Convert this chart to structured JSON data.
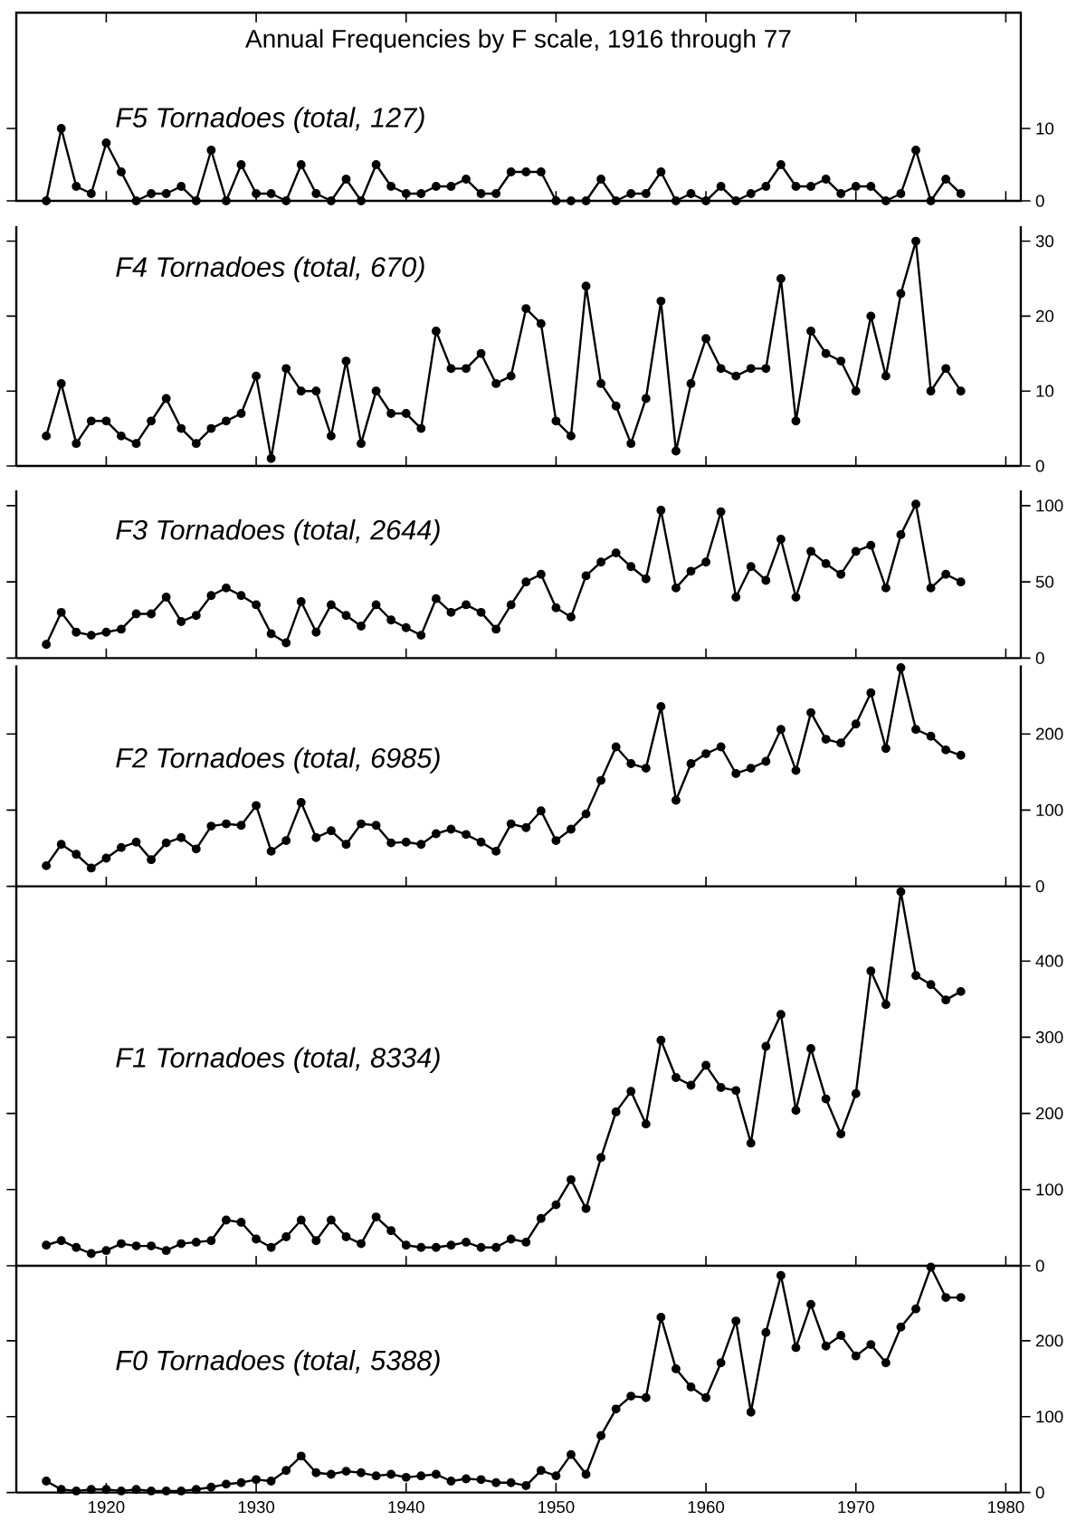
{
  "chart_data": [
    {
      "type": "line",
      "title": "Annual Frequencies by F scale, 1916 through 77",
      "subtitle": "F5 Tornadoes (total, 127)",
      "color": "#000000",
      "marker": "circle",
      "line_style": "solid",
      "tick_labels": "y",
      "xlim": [
        1914,
        1981
      ],
      "xticks": [
        1920,
        1930,
        1940,
        1950,
        1960,
        1970,
        1980
      ],
      "ylim": [
        0,
        26
      ],
      "yticks": [
        0,
        10
      ],
      "x": [
        1916,
        1917,
        1918,
        1919,
        1920,
        1921,
        1922,
        1923,
        1924,
        1925,
        1926,
        1927,
        1928,
        1929,
        1930,
        1931,
        1932,
        1933,
        1934,
        1935,
        1936,
        1937,
        1938,
        1939,
        1940,
        1941,
        1942,
        1943,
        1944,
        1945,
        1946,
        1947,
        1948,
        1949,
        1950,
        1951,
        1952,
        1953,
        1954,
        1955,
        1956,
        1957,
        1958,
        1959,
        1960,
        1961,
        1962,
        1963,
        1964,
        1965,
        1966,
        1967,
        1968,
        1969,
        1970,
        1971,
        1972,
        1973,
        1974,
        1975,
        1976,
        1977
      ],
      "values": [
        0,
        10,
        2,
        1,
        8,
        4,
        0,
        1,
        1,
        2,
        0,
        7,
        0,
        5,
        1,
        1,
        0,
        5,
        1,
        0,
        3,
        0,
        5,
        2,
        1,
        1,
        2,
        2,
        3,
        1,
        1,
        4,
        4,
        4,
        0,
        0,
        0,
        3,
        0,
        1,
        1,
        4,
        0,
        1,
        0,
        2,
        0,
        1,
        2,
        5,
        2,
        2,
        3,
        1,
        2,
        2,
        0,
        1,
        7,
        0,
        3,
        1
      ]
    },
    {
      "type": "line",
      "subtitle": "F4 Tornadoes (total, 670)",
      "color": "#000000",
      "marker": "circle",
      "line_style": "solid",
      "tick_labels": "y",
      "xlim": [
        1914,
        1981
      ],
      "xticks": [
        1920,
        1930,
        1940,
        1950,
        1960,
        1970,
        1980
      ],
      "ylim": [
        0,
        32
      ],
      "yticks": [
        0,
        10,
        20,
        30
      ],
      "x": [
        1916,
        1917,
        1918,
        1919,
        1920,
        1921,
        1922,
        1923,
        1924,
        1925,
        1926,
        1927,
        1928,
        1929,
        1930,
        1931,
        1932,
        1933,
        1934,
        1935,
        1936,
        1937,
        1938,
        1939,
        1940,
        1941,
        1942,
        1943,
        1944,
        1945,
        1946,
        1947,
        1948,
        1949,
        1950,
        1951,
        1952,
        1953,
        1954,
        1955,
        1956,
        1957,
        1958,
        1959,
        1960,
        1961,
        1962,
        1963,
        1964,
        1965,
        1966,
        1967,
        1968,
        1969,
        1970,
        1971,
        1972,
        1973,
        1974,
        1975,
        1976,
        1977
      ],
      "values": [
        4,
        11,
        3,
        6,
        6,
        4,
        3,
        6,
        9,
        5,
        3,
        5,
        6,
        7,
        12,
        1,
        13,
        10,
        10,
        4,
        14,
        3,
        10,
        7,
        7,
        5,
        18,
        13,
        13,
        15,
        11,
        12,
        21,
        19,
        6,
        4,
        24,
        11,
        8,
        3,
        9,
        22,
        2,
        11,
        17,
        13,
        12,
        13,
        13,
        25,
        6,
        18,
        15,
        14,
        10,
        20,
        12,
        23,
        30,
        10,
        13,
        10
      ]
    },
    {
      "type": "line",
      "subtitle": "F3 Tornadoes (total, 2644)",
      "color": "#000000",
      "marker": "circle",
      "line_style": "solid",
      "tick_labels": "y",
      "xlim": [
        1914,
        1981
      ],
      "xticks": [
        1920,
        1930,
        1940,
        1950,
        1960,
        1970,
        1980
      ],
      "ylim": [
        0,
        110
      ],
      "yticks": [
        0,
        50,
        100
      ],
      "x": [
        1916,
        1917,
        1918,
        1919,
        1920,
        1921,
        1922,
        1923,
        1924,
        1925,
        1926,
        1927,
        1928,
        1929,
        1930,
        1931,
        1932,
        1933,
        1934,
        1935,
        1936,
        1937,
        1938,
        1939,
        1940,
        1941,
        1942,
        1943,
        1944,
        1945,
        1946,
        1947,
        1948,
        1949,
        1950,
        1951,
        1952,
        1953,
        1954,
        1955,
        1956,
        1957,
        1958,
        1959,
        1960,
        1961,
        1962,
        1963,
        1964,
        1965,
        1966,
        1967,
        1968,
        1969,
        1970,
        1971,
        1972,
        1973,
        1974,
        1975,
        1976,
        1977
      ],
      "values": [
        9,
        30,
        17,
        15,
        17,
        19,
        29,
        29,
        40,
        24,
        28,
        41,
        46,
        41,
        35,
        16,
        10,
        37,
        17,
        35,
        28,
        21,
        35,
        25,
        20,
        15,
        39,
        30,
        35,
        30,
        19,
        35,
        50,
        55,
        33,
        27,
        54,
        63,
        69,
        60,
        52,
        97,
        46,
        57,
        63,
        96,
        40,
        60,
        51,
        78,
        40,
        70,
        62,
        55,
        70,
        74,
        46,
        81,
        101,
        46,
        55,
        50
      ]
    },
    {
      "type": "line",
      "subtitle": "F2 Tornadoes (total, 6985)",
      "color": "#000000",
      "marker": "circle",
      "line_style": "solid",
      "tick_labels": "y",
      "xlim": [
        1914,
        1981
      ],
      "xticks": [
        1920,
        1930,
        1940,
        1950,
        1960,
        1970,
        1980
      ],
      "ylim": [
        0,
        290
      ],
      "yticks": [
        0,
        100,
        200
      ],
      "x": [
        1916,
        1917,
        1918,
        1919,
        1920,
        1921,
        1922,
        1923,
        1924,
        1925,
        1926,
        1927,
        1928,
        1929,
        1930,
        1931,
        1932,
        1933,
        1934,
        1935,
        1936,
        1937,
        1938,
        1939,
        1940,
        1941,
        1942,
        1943,
        1944,
        1945,
        1946,
        1947,
        1948,
        1949,
        1950,
        1951,
        1952,
        1953,
        1954,
        1955,
        1956,
        1957,
        1958,
        1959,
        1960,
        1961,
        1962,
        1963,
        1964,
        1965,
        1966,
        1967,
        1968,
        1969,
        1970,
        1971,
        1972,
        1973,
        1974,
        1975,
        1976,
        1977
      ],
      "values": [
        27,
        55,
        42,
        24,
        37,
        51,
        58,
        35,
        57,
        64,
        49,
        79,
        82,
        80,
        106,
        46,
        60,
        110,
        64,
        73,
        55,
        82,
        80,
        57,
        58,
        55,
        69,
        75,
        68,
        58,
        46,
        82,
        77,
        99,
        60,
        75,
        95,
        139,
        183,
        161,
        155,
        236,
        113,
        161,
        174,
        183,
        148,
        155,
        164,
        206,
        152,
        228,
        193,
        188,
        213,
        254,
        181,
        287,
        206,
        197,
        179,
        172
      ]
    },
    {
      "type": "line",
      "subtitle": "F1 Tornadoes (total, 8334)",
      "color": "#000000",
      "marker": "circle",
      "line_style": "solid",
      "tick_labels": "y",
      "xlim": [
        1914,
        1981
      ],
      "xticks": [
        1920,
        1930,
        1940,
        1950,
        1960,
        1970,
        1980
      ],
      "ylim": [
        0,
        500
      ],
      "yticks": [
        0,
        100,
        200,
        300,
        400
      ],
      "x": [
        1916,
        1917,
        1918,
        1919,
        1920,
        1921,
        1922,
        1923,
        1924,
        1925,
        1926,
        1927,
        1928,
        1929,
        1930,
        1931,
        1932,
        1933,
        1934,
        1935,
        1936,
        1937,
        1938,
        1939,
        1940,
        1941,
        1942,
        1943,
        1944,
        1945,
        1946,
        1947,
        1948,
        1949,
        1950,
        1951,
        1952,
        1953,
        1954,
        1955,
        1956,
        1957,
        1958,
        1959,
        1960,
        1961,
        1962,
        1963,
        1964,
        1965,
        1966,
        1967,
        1968,
        1969,
        1970,
        1971,
        1972,
        1973,
        1974,
        1975,
        1976,
        1977
      ],
      "values": [
        27,
        33,
        24,
        16,
        20,
        29,
        26,
        26,
        20,
        29,
        31,
        33,
        60,
        57,
        35,
        24,
        38,
        60,
        33,
        60,
        38,
        29,
        64,
        46,
        27,
        24,
        24,
        27,
        31,
        24,
        24,
        35,
        31,
        62,
        80,
        113,
        75,
        142,
        202,
        229,
        186,
        296,
        247,
        237,
        263,
        234,
        230,
        161,
        288,
        330,
        204,
        285,
        219,
        173,
        226,
        387,
        343,
        491,
        381,
        369,
        349,
        360
      ]
    },
    {
      "type": "line",
      "subtitle": "F0 Tornadoes (total, 5388)",
      "color": "#000000",
      "marker": "circle",
      "line_style": "solid",
      "xlim": [
        1914,
        1981
      ],
      "xticks": [
        1920,
        1930,
        1940,
        1950,
        1960,
        1970,
        1980
      ],
      "ylim": [
        0,
        300
      ],
      "yticks": [
        0,
        100,
        200
      ],
      "x": [
        1916,
        1917,
        1918,
        1919,
        1920,
        1921,
        1922,
        1923,
        1924,
        1925,
        1926,
        1927,
        1928,
        1929,
        1930,
        1931,
        1932,
        1933,
        1934,
        1935,
        1936,
        1937,
        1938,
        1939,
        1940,
        1941,
        1942,
        1943,
        1944,
        1945,
        1946,
        1947,
        1948,
        1949,
        1950,
        1951,
        1952,
        1953,
        1954,
        1955,
        1956,
        1957,
        1958,
        1959,
        1960,
        1961,
        1962,
        1963,
        1964,
        1965,
        1966,
        1967,
        1968,
        1969,
        1970,
        1971,
        1972,
        1973,
        1974,
        1975,
        1976,
        1977
      ],
      "values": [
        15,
        4,
        2,
        4,
        4,
        2,
        4,
        2,
        2,
        2,
        4,
        7,
        11,
        13,
        17,
        15,
        29,
        48,
        26,
        24,
        28,
        26,
        22,
        24,
        20,
        22,
        24,
        15,
        18,
        17,
        13,
        13,
        9,
        29,
        22,
        50,
        24,
        75,
        110,
        127,
        125,
        231,
        163,
        139,
        125,
        171,
        226,
        106,
        211,
        286,
        191,
        248,
        193,
        207,
        180,
        195,
        171,
        218,
        242,
        297,
        257,
        257
      ]
    }
  ]
}
